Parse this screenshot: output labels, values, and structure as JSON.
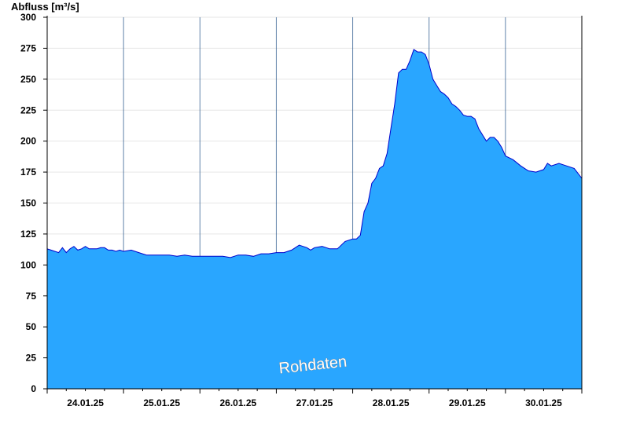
{
  "chart_data": {
    "type": "area",
    "ylabel": "Abfluss [m³/s]",
    "ylim": [
      0,
      300
    ],
    "y_ticks": [
      0,
      25,
      50,
      75,
      100,
      125,
      150,
      175,
      200,
      225,
      250,
      275,
      300
    ],
    "x_tick_labels": [
      "24.01.25",
      "25.01.25",
      "26.01.25",
      "27.01.25",
      "28.01.25",
      "29.01.25",
      "30.01.25"
    ],
    "xlim": [
      0,
      7
    ],
    "grid": "horizontal",
    "watermark": "Rohdaten",
    "fill_color": "#29a6ff",
    "line_color": "#0000cc",
    "series": [
      {
        "x": [
          0.0,
          0.05,
          0.1,
          0.15,
          0.2,
          0.25,
          0.3,
          0.35,
          0.4,
          0.45,
          0.5,
          0.55,
          0.6,
          0.65,
          0.7,
          0.75,
          0.8,
          0.85,
          0.9,
          0.95,
          1.0,
          1.1,
          1.2,
          1.3,
          1.4,
          1.5,
          1.6,
          1.7,
          1.8,
          1.9,
          2.0,
          2.1,
          2.2,
          2.3,
          2.4,
          2.5,
          2.6,
          2.7,
          2.8,
          2.9,
          3.0,
          3.1,
          3.2,
          3.3,
          3.4,
          3.45,
          3.5,
          3.6,
          3.7,
          3.8,
          3.9,
          3.95,
          4.0,
          4.05,
          4.1,
          4.15,
          4.2,
          4.25,
          4.3,
          4.35,
          4.4,
          4.45,
          4.5,
          4.55,
          4.6,
          4.65,
          4.7,
          4.75,
          4.8,
          4.85,
          4.9,
          4.95,
          5.0,
          5.05,
          5.1,
          5.15,
          5.2,
          5.25,
          5.3,
          5.35,
          5.4,
          5.45,
          5.5,
          5.55,
          5.6,
          5.65,
          5.7,
          5.75,
          5.8,
          5.85,
          5.9,
          5.95,
          6.0,
          6.1,
          6.2,
          6.3,
          6.4,
          6.5,
          6.55,
          6.6,
          6.7,
          6.8,
          6.9,
          7.0
        ],
        "values": [
          113,
          112,
          111,
          110,
          114,
          110,
          113,
          115,
          112,
          113,
          115,
          113,
          113,
          113,
          114,
          114,
          112,
          112,
          111,
          112,
          111,
          112,
          110,
          108,
          108,
          108,
          108,
          107,
          108,
          107,
          107,
          107,
          107,
          107,
          106,
          108,
          108,
          107,
          109,
          109,
          110,
          110,
          112,
          116,
          114,
          112,
          114,
          115,
          113,
          113,
          119,
          120,
          121,
          121,
          124,
          143,
          150,
          166,
          170,
          178,
          180,
          190,
          210,
          230,
          255,
          258,
          258,
          265,
          274,
          272,
          272,
          270,
          262,
          250,
          245,
          240,
          238,
          235,
          230,
          228,
          225,
          221,
          220,
          220,
          218,
          210,
          205,
          200,
          203,
          203,
          200,
          195,
          188,
          185,
          180,
          176,
          175,
          177,
          182,
          180,
          182,
          180,
          178,
          170
        ]
      }
    ]
  }
}
